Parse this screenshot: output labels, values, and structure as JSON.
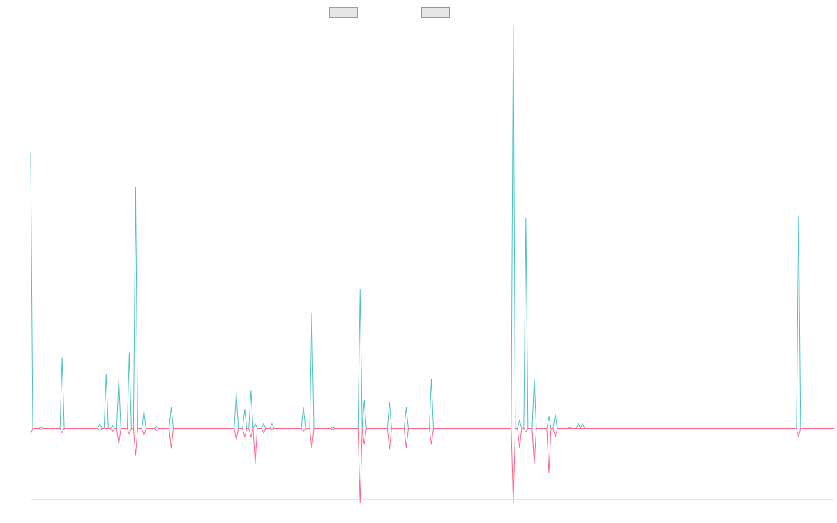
{
  "chart_data": {
    "type": "line",
    "title": "",
    "xlabel": "",
    "ylabel": "",
    "grid": false,
    "legend_position": "top-center",
    "ylim": [
      -1,
      5.7
    ],
    "x_count": 384,
    "series": [
      {
        "name": "",
        "color": "#4bc0c0",
        "fill": "#e6e6e6",
        "values_sparse": [
          [
            0,
            3.9
          ],
          [
            5,
            0.02
          ],
          [
            15,
            1.0
          ],
          [
            33,
            0.07
          ],
          [
            36,
            0.77
          ],
          [
            39,
            0.04
          ],
          [
            42,
            0.7
          ],
          [
            47,
            1.07
          ],
          [
            50,
            3.41
          ],
          [
            54,
            0.25
          ],
          [
            60,
            0.03
          ],
          [
            67,
            0.3
          ],
          [
            98,
            0.5
          ],
          [
            102,
            0.27
          ],
          [
            105,
            0.54
          ],
          [
            107,
            0.07
          ],
          [
            111,
            0.07
          ],
          [
            115,
            0.07
          ],
          [
            130,
            0.3
          ],
          [
            134,
            1.63
          ],
          [
            144,
            0.02
          ],
          [
            157,
            1.96
          ],
          [
            159,
            0.4
          ],
          [
            171,
            0.37
          ],
          [
            179,
            0.3
          ],
          [
            191,
            0.7
          ],
          [
            230,
            5.7
          ],
          [
            233,
            0.12
          ],
          [
            236,
            2.97
          ],
          [
            240,
            0.71
          ],
          [
            247,
            0.17
          ],
          [
            250,
            0.2
          ],
          [
            257,
            0.01
          ],
          [
            261,
            0.07
          ],
          [
            263,
            0.07
          ],
          [
            366,
            3.0
          ]
        ]
      },
      {
        "name": "",
        "color": "#ff6384",
        "fill": "#e6e6e6",
        "values_sparse": [
          [
            0,
            -0.08
          ],
          [
            5,
            -0.02
          ],
          [
            15,
            -0.06
          ],
          [
            33,
            -0.03
          ],
          [
            39,
            -0.04
          ],
          [
            42,
            -0.22
          ],
          [
            47,
            -0.08
          ],
          [
            50,
            -0.38
          ],
          [
            54,
            -0.1
          ],
          [
            60,
            -0.03
          ],
          [
            67,
            -0.28
          ],
          [
            98,
            -0.16
          ],
          [
            102,
            -0.12
          ],
          [
            105,
            -0.12
          ],
          [
            107,
            -0.5
          ],
          [
            111,
            -0.06
          ],
          [
            115,
            -0.01
          ],
          [
            130,
            -0.04
          ],
          [
            134,
            -0.28
          ],
          [
            144,
            -0.02
          ],
          [
            157,
            -1.05
          ],
          [
            159,
            -0.22
          ],
          [
            171,
            -0.29
          ],
          [
            179,
            -0.27
          ],
          [
            191,
            -0.22
          ],
          [
            230,
            -1.05
          ],
          [
            233,
            -0.27
          ],
          [
            236,
            -0.05
          ],
          [
            240,
            -0.5
          ],
          [
            247,
            -0.63
          ],
          [
            250,
            -0.12
          ],
          [
            366,
            -0.12
          ]
        ]
      }
    ]
  }
}
